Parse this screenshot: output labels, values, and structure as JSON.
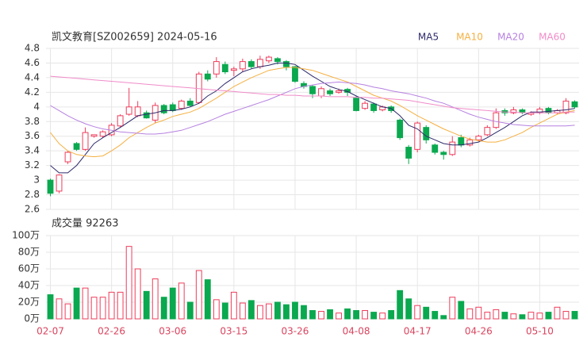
{
  "chart_data": [
    {
      "type": "candlestick",
      "title": "凯文教育[SZ002659] 2024-05-16",
      "categories": [
        "02-07",
        null,
        null,
        null,
        null,
        null,
        null,
        "02-26",
        null,
        null,
        null,
        null,
        null,
        null,
        "03-06",
        null,
        null,
        null,
        null,
        null,
        null,
        "03-15",
        null,
        null,
        null,
        null,
        null,
        null,
        "03-26",
        null,
        null,
        null,
        null,
        null,
        null,
        "04-08",
        null,
        null,
        null,
        null,
        null,
        null,
        "04-17",
        null,
        null,
        null,
        null,
        null,
        null,
        "04-26",
        null,
        null,
        null,
        null,
        null,
        null,
        "05-10",
        null,
        null,
        null,
        null
      ],
      "open": [
        3.0,
        2.85,
        3.25,
        3.5,
        3.42,
        3.6,
        3.6,
        3.62,
        3.74,
        3.9,
        3.88,
        3.92,
        3.82,
        4.02,
        4.03,
        3.98,
        4.08,
        4.06,
        4.45,
        4.45,
        4.58,
        4.5,
        4.52,
        4.62,
        4.55,
        4.63,
        4.66,
        4.62,
        4.55,
        4.32,
        4.28,
        4.15,
        4.22,
        4.2,
        4.24,
        4.12,
        3.98,
        4.04,
        3.96,
        4.0,
        3.82,
        3.45,
        3.42,
        3.72,
        3.48,
        3.38,
        3.35,
        3.58,
        3.48,
        3.55,
        3.62,
        3.72,
        3.95,
        3.92,
        3.96,
        3.9,
        3.92,
        3.98,
        3.92,
        3.92,
        4.07
      ],
      "high": [
        3.02,
        3.08,
        3.4,
        3.52,
        3.72,
        3.62,
        3.68,
        3.78,
        3.9,
        4.26,
        4.08,
        3.95,
        4.06,
        4.04,
        4.06,
        4.1,
        4.12,
        4.48,
        4.5,
        4.68,
        4.62,
        4.55,
        4.66,
        4.65,
        4.7,
        4.7,
        4.68,
        4.64,
        4.56,
        4.35,
        4.3,
        4.28,
        4.25,
        4.25,
        4.26,
        4.15,
        4.08,
        4.06,
        4.02,
        4.02,
        3.84,
        3.48,
        3.8,
        3.75,
        3.5,
        3.4,
        3.6,
        3.62,
        3.58,
        3.62,
        3.75,
        3.98,
        3.98,
        4.0,
        3.98,
        3.94,
        4.0,
        4.0,
        3.97,
        4.12,
        4.09
      ],
      "low": [
        2.78,
        2.82,
        3.22,
        3.4,
        3.4,
        3.58,
        3.58,
        3.6,
        3.72,
        3.88,
        3.86,
        3.84,
        3.78,
        3.9,
        3.93,
        3.96,
        4.0,
        4.04,
        4.35,
        4.4,
        4.45,
        4.42,
        4.48,
        4.52,
        4.52,
        4.6,
        4.58,
        4.5,
        4.33,
        4.25,
        4.12,
        4.12,
        4.15,
        4.18,
        4.15,
        3.94,
        3.96,
        3.92,
        3.94,
        3.92,
        3.55,
        3.22,
        3.38,
        3.5,
        3.35,
        3.28,
        3.33,
        3.45,
        3.46,
        3.53,
        3.6,
        3.7,
        3.88,
        3.9,
        3.9,
        3.88,
        3.9,
        3.9,
        3.9,
        3.9,
        3.98
      ],
      "close": [
        2.82,
        3.07,
        3.38,
        3.42,
        3.65,
        3.62,
        3.66,
        3.75,
        3.88,
        4.0,
        4.0,
        3.85,
        4.02,
        3.92,
        3.95,
        4.08,
        4.02,
        4.45,
        4.38,
        4.62,
        4.48,
        4.52,
        4.62,
        4.55,
        4.65,
        4.68,
        4.62,
        4.55,
        4.35,
        4.28,
        4.18,
        4.25,
        4.18,
        4.22,
        4.2,
        3.95,
        4.05,
        3.95,
        4.0,
        3.95,
        3.58,
        3.3,
        3.78,
        3.55,
        3.38,
        3.35,
        3.52,
        3.48,
        3.55,
        3.6,
        3.72,
        3.92,
        3.92,
        3.96,
        3.93,
        3.92,
        3.97,
        3.92,
        3.95,
        4.08,
        4.0
      ],
      "up_color": "#ee3d5b",
      "down_color": "#0aa84f",
      "series": [
        {
          "name": "MA5",
          "color": "#2d2a6b",
          "values": [
            3.2,
            3.1,
            3.1,
            3.2,
            3.35,
            3.5,
            3.58,
            3.65,
            3.72,
            3.8,
            3.88,
            3.9,
            3.92,
            3.95,
            3.95,
            3.97,
            4.0,
            4.05,
            4.15,
            4.22,
            4.32,
            4.4,
            4.48,
            4.52,
            4.55,
            4.57,
            4.6,
            4.6,
            4.58,
            4.5,
            4.42,
            4.35,
            4.28,
            4.24,
            4.21,
            4.15,
            4.1,
            4.05,
            4.0,
            3.98,
            3.88,
            3.75,
            3.7,
            3.6,
            3.55,
            3.5,
            3.48,
            3.48,
            3.5,
            3.52,
            3.58,
            3.65,
            3.72,
            3.8,
            3.88,
            3.93,
            3.93,
            3.94,
            3.95,
            3.96,
            3.98
          ]
        },
        {
          "name": "MA10",
          "color": "#f5b041",
          "values": [
            3.65,
            3.5,
            3.4,
            3.35,
            3.33,
            3.32,
            3.33,
            3.4,
            3.48,
            3.58,
            3.65,
            3.72,
            3.78,
            3.82,
            3.87,
            3.9,
            3.93,
            3.98,
            4.05,
            4.12,
            4.2,
            4.28,
            4.34,
            4.4,
            4.45,
            4.5,
            4.52,
            4.54,
            4.54,
            4.52,
            4.5,
            4.46,
            4.42,
            4.38,
            4.34,
            4.28,
            4.22,
            4.16,
            4.12,
            4.08,
            4.02,
            3.95,
            3.88,
            3.82,
            3.76,
            3.7,
            3.65,
            3.6,
            3.56,
            3.54,
            3.52,
            3.52,
            3.55,
            3.6,
            3.65,
            3.72,
            3.78,
            3.84,
            3.9,
            3.93,
            3.95
          ]
        },
        {
          "name": "MA20",
          "color": "#b680e0",
          "values": [
            4.02,
            3.95,
            3.88,
            3.82,
            3.77,
            3.73,
            3.7,
            3.68,
            3.66,
            3.65,
            3.64,
            3.63,
            3.63,
            3.64,
            3.66,
            3.68,
            3.72,
            3.76,
            3.8,
            3.85,
            3.9,
            3.94,
            3.98,
            4.02,
            4.06,
            4.1,
            4.15,
            4.2,
            4.25,
            4.28,
            4.3,
            4.32,
            4.33,
            4.34,
            4.33,
            4.32,
            4.3,
            4.27,
            4.25,
            4.22,
            4.2,
            4.18,
            4.15,
            4.12,
            4.08,
            4.05,
            4.0,
            3.95,
            3.9,
            3.86,
            3.83,
            3.8,
            3.78,
            3.76,
            3.75,
            3.74,
            3.74,
            3.74,
            3.74,
            3.74,
            3.75
          ]
        },
        {
          "name": "MA60",
          "color": "#f08cc8",
          "values": [
            4.42,
            4.41,
            4.4,
            4.39,
            4.38,
            4.37,
            4.36,
            4.35,
            4.34,
            4.33,
            4.32,
            4.31,
            4.3,
            4.29,
            4.28,
            4.27,
            4.26,
            4.25,
            4.24,
            4.23,
            4.22,
            4.21,
            4.2,
            4.19,
            4.18,
            4.17,
            4.17,
            4.16,
            4.16,
            4.15,
            4.15,
            4.15,
            4.14,
            4.14,
            4.14,
            4.13,
            4.13,
            4.12,
            4.12,
            4.11,
            4.1,
            4.09,
            4.07,
            4.05,
            4.03,
            4.01,
            3.99,
            3.98,
            3.97,
            3.96,
            3.95,
            3.94,
            3.93,
            3.93,
            3.92,
            3.92,
            3.92,
            3.92,
            3.92,
            3.93,
            3.93
          ]
        }
      ],
      "ylim": [
        2.6,
        4.8
      ],
      "yticks": [
        2.6,
        2.8,
        3,
        3.2,
        3.4,
        3.6,
        3.8,
        4,
        4.2,
        4.4,
        4.6,
        4.8
      ],
      "grid": true
    },
    {
      "type": "bar",
      "title": "成交量 92263",
      "values": [
        29,
        24,
        18,
        37,
        37,
        26,
        26,
        32,
        32,
        87,
        60,
        33,
        48,
        26,
        37,
        43,
        20,
        58,
        47,
        23,
        19,
        32,
        19,
        22,
        16,
        18,
        20,
        17,
        20,
        16,
        10,
        9,
        11,
        7,
        12,
        10,
        10,
        8,
        7,
        10,
        34,
        24,
        16,
        14,
        9,
        4,
        26,
        21,
        12,
        14,
        8,
        11,
        8,
        6,
        5,
        8,
        7,
        8,
        14,
        9,
        9
      ],
      "ylim": [
        0,
        100
      ],
      "yticks": [
        {
          "value": 0,
          "label": "0万"
        },
        {
          "value": 20,
          "label": "20万"
        },
        {
          "value": 40,
          "label": "40万"
        },
        {
          "value": 60,
          "label": "60万"
        },
        {
          "value": 80,
          "label": "80万"
        },
        {
          "value": 100,
          "label": "100万"
        }
      ],
      "grid": true
    }
  ]
}
